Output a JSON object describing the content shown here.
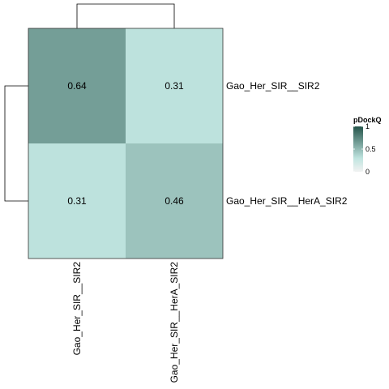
{
  "chart_data": {
    "type": "heatmap",
    "rows": [
      "Gao_Her_SIR__SIR2",
      "Gao_Her_SIR__HerA_SIR2"
    ],
    "columns": [
      "Gao_Her_SIR__SIR2",
      "Gao_Her_SIR__HerA_SIR2"
    ],
    "values": [
      [
        0.64,
        0.31
      ],
      [
        0.31,
        0.46
      ]
    ],
    "value_labels": [
      [
        "0.64",
        "0.31"
      ],
      [
        "0.31",
        "0.46"
      ]
    ],
    "legend": {
      "title": "pDockQ",
      "range": [
        0,
        1
      ],
      "ticks": [
        0,
        0.5,
        1
      ],
      "tick_labels": [
        "0",
        "0.5",
        "1"
      ],
      "placement": "right"
    },
    "color_scale": {
      "low": "#f2f2f2",
      "mid": "#bfe4df",
      "high": "#24544a",
      "mid_value": 0.3
    },
    "dendrograms": {
      "row": true,
      "column": true
    }
  }
}
